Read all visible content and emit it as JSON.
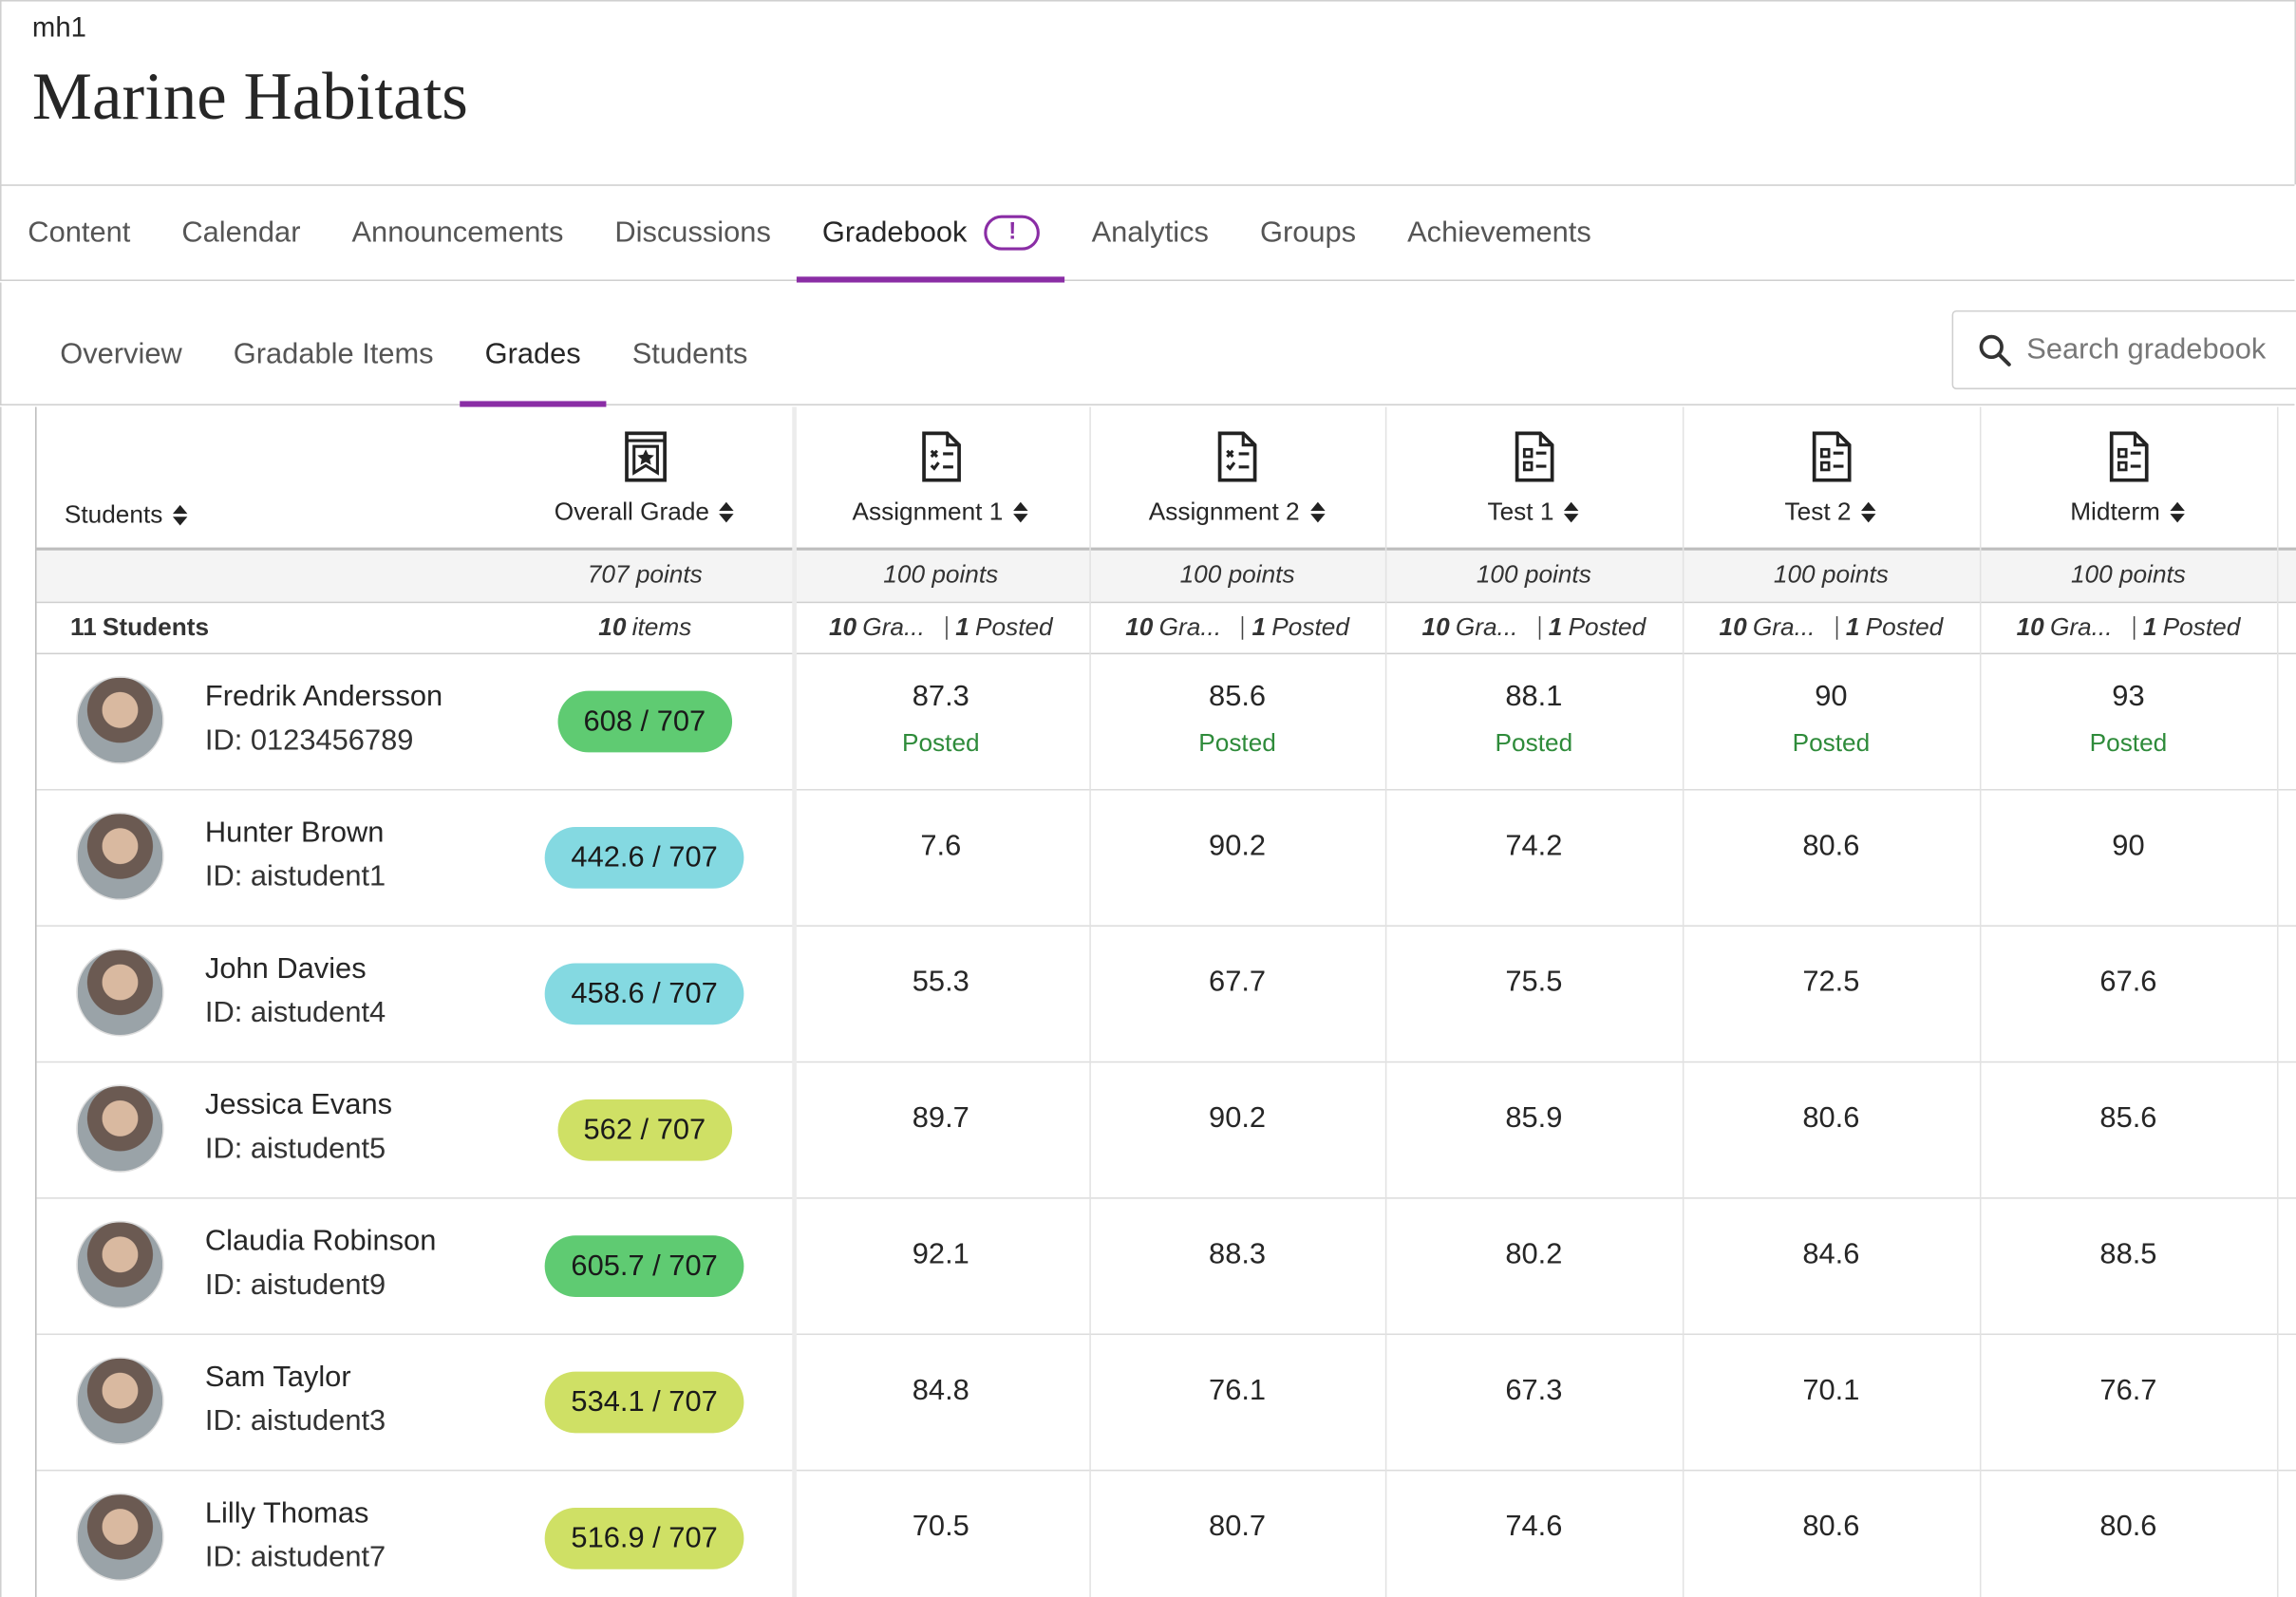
{
  "header": {
    "code": "mh1",
    "title": "Marine Habitats"
  },
  "tabs": {
    "items": [
      "Content",
      "Calendar",
      "Announcements",
      "Discussions",
      "Gradebook",
      "Analytics",
      "Groups",
      "Achievements"
    ],
    "active_index": 4,
    "badge": "!",
    "accent_color": "#8a2da5"
  },
  "subtabs": {
    "items": [
      "Overview",
      "Gradable Items",
      "Grades",
      "Students"
    ],
    "active_index": 2
  },
  "search": {
    "placeholder": "Search gradebook"
  },
  "table": {
    "student_header": "Students",
    "student_count": "11",
    "student_label": "Students",
    "columns": [
      {
        "name": "Overall Grade",
        "points": "707 points",
        "count": "10",
        "label": "items"
      },
      {
        "name": "Assignment 1",
        "points": "100 points",
        "count": "10",
        "label": "Gra...",
        "posted_count": "1",
        "posted_label": "Posted"
      },
      {
        "name": "Assignment 2",
        "points": "100 points",
        "count": "10",
        "label": "Gra...",
        "posted_count": "1",
        "posted_label": "Posted"
      },
      {
        "name": "Test 1",
        "points": "100 points",
        "count": "10",
        "label": "Gra...",
        "posted_count": "1",
        "posted_label": "Posted"
      },
      {
        "name": "Test 2",
        "points": "100 points",
        "count": "10",
        "label": "Gra...",
        "posted_count": "1",
        "posted_label": "Posted"
      },
      {
        "name": "Midterm",
        "points": "100 points",
        "count": "10",
        "label": "Gra...",
        "posted_count": "1",
        "posted_label": "Posted"
      }
    ],
    "rows": [
      {
        "name": "Fredrik Andersson",
        "id": "ID: 0123456789",
        "overall": "608 / 707",
        "badge_color": "#5fcb72",
        "grades": [
          87.3,
          85.6,
          88.1,
          90,
          93
        ],
        "statuses": [
          "Posted",
          "Posted",
          "Posted",
          "Posted",
          "Posted"
        ]
      },
      {
        "name": "Hunter Brown",
        "id": "ID: aistudent1",
        "overall": "442.6 / 707",
        "badge_color": "#84d9e1",
        "grades": [
          7.6,
          90.2,
          74.2,
          80.6,
          90
        ]
      },
      {
        "name": "John Davies",
        "id": "ID: aistudent4",
        "overall": "458.6 / 707",
        "badge_color": "#84d9e1",
        "grades": [
          55.3,
          67.7,
          75.5,
          72.5,
          67.6
        ]
      },
      {
        "name": "Jessica Evans",
        "id": "ID: aistudent5",
        "overall": "562 / 707",
        "badge_color": "#cfe065",
        "grades": [
          89.7,
          90.2,
          85.9,
          80.6,
          85.6
        ]
      },
      {
        "name": "Claudia Robinson",
        "id": "ID: aistudent9",
        "overall": "605.7 / 707",
        "badge_color": "#5fcb72",
        "grades": [
          92.1,
          88.3,
          80.2,
          84.6,
          88.5
        ]
      },
      {
        "name": "Sam Taylor",
        "id": "ID: aistudent3",
        "overall": "534.1 / 707",
        "badge_color": "#cfe065",
        "grades": [
          84.8,
          76.1,
          67.3,
          70.1,
          76.7
        ]
      },
      {
        "name": "Lilly Thomas",
        "id": "ID: aistudent7",
        "overall": "516.9 / 707",
        "badge_color": "#cfe065",
        "grades": [
          70.5,
          80.7,
          74.6,
          80.6,
          80.6
        ]
      }
    ]
  }
}
